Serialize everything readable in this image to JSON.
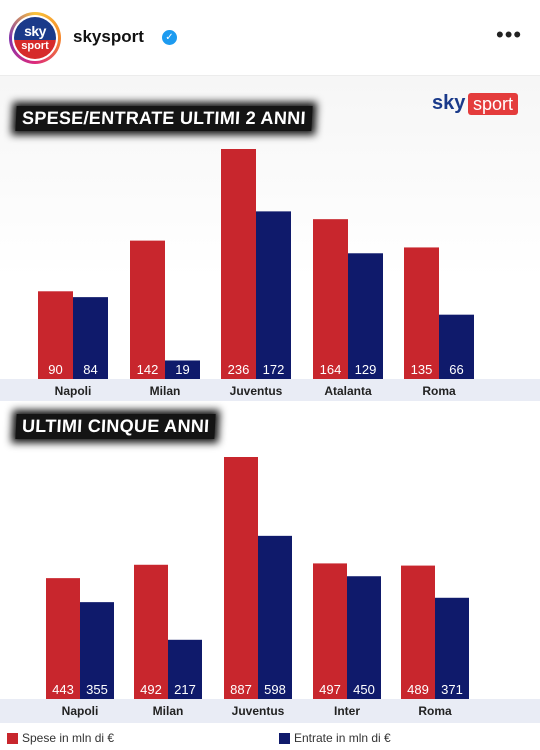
{
  "header": {
    "username": "skysport",
    "avatar": {
      "sky": "sky",
      "sport": "sport"
    },
    "verified_icon": "verified-badge-icon",
    "more_icon": "more-options-icon",
    "more_glyph": "•••"
  },
  "brand": {
    "sky": "sky",
    "sport": "sport"
  },
  "colors": {
    "spese": "#c8262d",
    "entrate": "#0f1a6b",
    "band": "#e9ecf5"
  },
  "chart_data": [
    {
      "type": "bar",
      "title": "SPESE/ENTRATE ULTIMI 2 ANNI",
      "categories": [
        "Napoli",
        "Milan",
        "Juventus",
        "Atalanta",
        "Roma"
      ],
      "series": [
        {
          "name": "Spese in mln di €",
          "values": [
            90,
            142,
            236,
            164,
            135
          ]
        },
        {
          "name": "Entrate in mln di €",
          "values": [
            84,
            19,
            172,
            129,
            66
          ]
        }
      ],
      "ylim": [
        0,
        236
      ]
    },
    {
      "type": "bar",
      "title": "ULTIMI CINQUE ANNI",
      "categories": [
        "Napoli",
        "Milan",
        "Juventus",
        "Inter",
        "Roma"
      ],
      "series": [
        {
          "name": "Spese in mln di €",
          "values": [
            443,
            492,
            887,
            497,
            489
          ]
        },
        {
          "name": "Entrate in mln di €",
          "values": [
            355,
            217,
            598,
            450,
            371
          ]
        }
      ],
      "ylim": [
        0,
        887
      ]
    }
  ],
  "legend": {
    "spese": "Spese in mln di €",
    "entrate": "Entrate in mln di €",
    "placement": "bottom"
  }
}
